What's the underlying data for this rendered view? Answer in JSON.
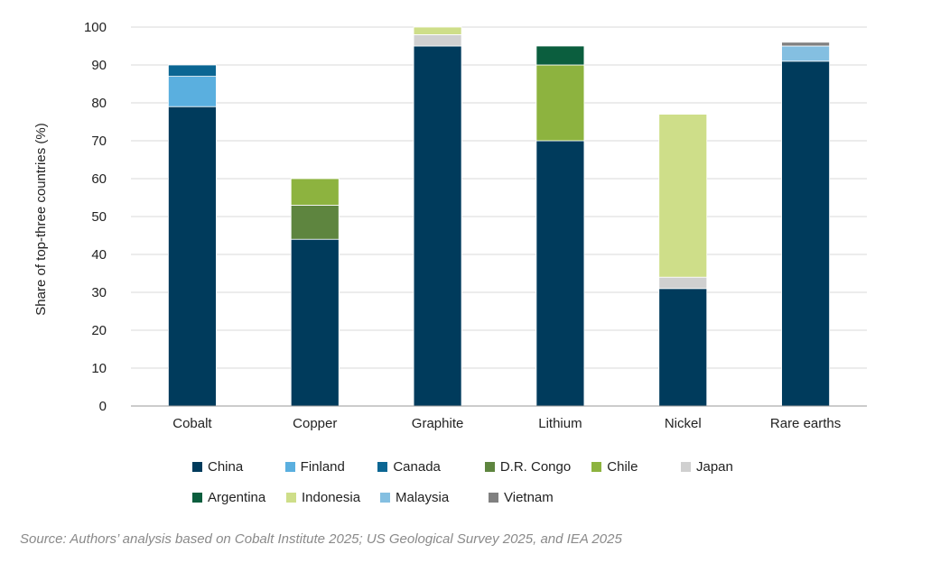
{
  "chart_data": {
    "type": "bar",
    "stacked": true,
    "categories": [
      "Cobalt",
      "Copper",
      "Graphite",
      "Lithium",
      "Nickel",
      "Rare earths"
    ],
    "ylabel": "Share of top-three countries (%)",
    "ylim": [
      0,
      100
    ],
    "yticks": [
      0,
      10,
      20,
      30,
      40,
      50,
      60,
      70,
      80,
      90,
      100
    ],
    "grid": true,
    "series": [
      {
        "name": "China",
        "color": "#003b5c",
        "values": [
          79,
          44,
          95,
          70,
          31,
          91
        ]
      },
      {
        "name": "Finland",
        "color": "#5aafdf",
        "values": [
          8,
          0,
          0,
          0,
          0,
          0
        ]
      },
      {
        "name": "Canada",
        "color": "#0b6693",
        "values": [
          3,
          0,
          0,
          0,
          0,
          0
        ]
      },
      {
        "name": "D.R. Congo",
        "color": "#5e853f",
        "values": [
          0,
          9,
          0,
          0,
          0,
          0
        ]
      },
      {
        "name": "Chile",
        "color": "#8db33f",
        "values": [
          0,
          7,
          0,
          20,
          0,
          0
        ]
      },
      {
        "name": "Japan",
        "color": "#d0d0d0",
        "values": [
          0,
          0,
          3,
          0,
          3,
          0
        ]
      },
      {
        "name": "Argentina",
        "color": "#0b5e3e",
        "values": [
          0,
          0,
          0,
          5,
          0,
          0
        ]
      },
      {
        "name": "Indonesia",
        "color": "#cede89",
        "values": [
          0,
          0,
          2,
          0,
          43,
          0
        ]
      },
      {
        "name": "Malaysia",
        "color": "#84bfe1",
        "values": [
          0,
          0,
          0,
          0,
          0,
          4
        ]
      },
      {
        "name": "Vietnam",
        "color": "#808080",
        "values": [
          0,
          0,
          0,
          0,
          0,
          1
        ]
      }
    ],
    "legend_position": "bottom"
  },
  "source": "Source: Authors’ analysis based on Cobalt Institute 2025; US Geological Survey 2025, and IEA 2025"
}
